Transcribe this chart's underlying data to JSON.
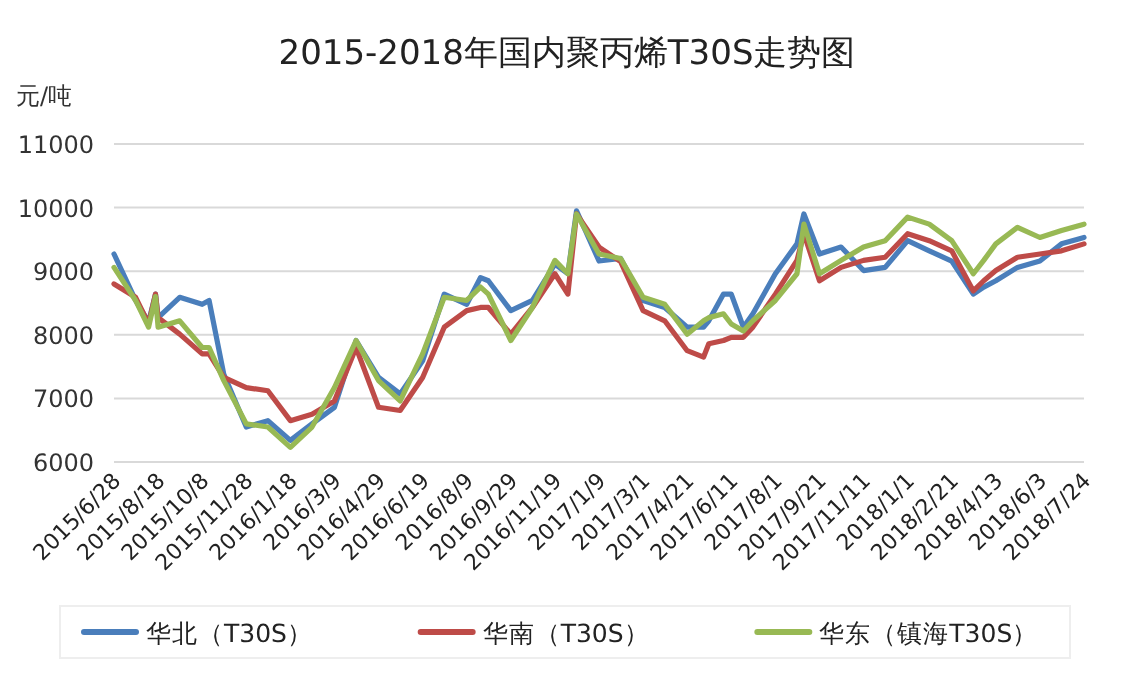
{
  "chart_data": {
    "type": "line",
    "title": "2015-2018年国内聚丙烯T30S走势图",
    "ylabel": "元/吨",
    "x": [
      "2015-06-28",
      "2015-07-23",
      "2015-08-07",
      "2015-08-15",
      "2015-08-18",
      "2015-09-12",
      "2015-10-08",
      "2015-10-16",
      "2015-11-02",
      "2015-11-28",
      "2015-12-23",
      "2016-01-18",
      "2016-02-12",
      "2016-03-09",
      "2016-04-03",
      "2016-04-29",
      "2016-05-24",
      "2016-06-19",
      "2016-07-14",
      "2016-08-09",
      "2016-08-25",
      "2016-09-03",
      "2016-09-29",
      "2016-10-24",
      "2016-11-19",
      "2016-12-04",
      "2016-12-14",
      "2017-01-09",
      "2017-02-03",
      "2017-03-01",
      "2017-03-26",
      "2017-04-21",
      "2017-05-10",
      "2017-05-16",
      "2017-06-02",
      "2017-06-11",
      "2017-06-25",
      "2017-07-06",
      "2017-08-01",
      "2017-08-26",
      "2017-09-03",
      "2017-09-21",
      "2017-10-16",
      "2017-11-11",
      "2017-12-06",
      "2018-01-01",
      "2018-01-26",
      "2018-02-21",
      "2018-03-18",
      "2018-03-30",
      "2018-04-13",
      "2018-05-08",
      "2018-06-03",
      "2018-06-28",
      "2018-07-24"
    ],
    "series": [
      {
        "name": "华北（T30S）",
        "color": "#4a7ebb",
        "values": [
          9270,
          8540,
          8200,
          8640,
          8270,
          8590,
          8480,
          8540,
          7380,
          6550,
          6650,
          6340,
          6600,
          6860,
          7910,
          7330,
          7070,
          7590,
          8640,
          8480,
          8900,
          8850,
          8380,
          8540,
          9110,
          8960,
          9950,
          9160,
          9200,
          8540,
          8430,
          8120,
          8120,
          8220,
          8640,
          8640,
          8120,
          8330,
          8960,
          9430,
          9900,
          9270,
          9380,
          9010,
          9060,
          9480,
          9320,
          9160,
          8640,
          8750,
          8850,
          9060,
          9160,
          9430,
          9530
        ]
      },
      {
        "name": "华南（T30S）",
        "color": "#be4b48",
        "values": [
          8800,
          8590,
          8170,
          8640,
          8270,
          8010,
          7700,
          7700,
          7330,
          7170,
          7120,
          6650,
          6750,
          6960,
          7800,
          6860,
          6810,
          7330,
          8120,
          8380,
          8430,
          8430,
          8010,
          8430,
          8960,
          8640,
          9900,
          9380,
          9150,
          8380,
          8220,
          7750,
          7650,
          7860,
          7910,
          7960,
          7960,
          8120,
          8640,
          9170,
          9590,
          8850,
          9060,
          9170,
          9220,
          9590,
          9480,
          9320,
          8690,
          8850,
          9010,
          9220,
          9270,
          9320,
          9430
        ]
      },
      {
        "name": "华东（镇海T30S）",
        "color": "#98b954",
        "values": [
          9060,
          8540,
          8120,
          8600,
          8120,
          8220,
          7800,
          7800,
          7280,
          6600,
          6550,
          6230,
          6550,
          7170,
          7910,
          7280,
          6960,
          7700,
          8590,
          8540,
          8750,
          8640,
          7910,
          8430,
          9170,
          8960,
          9900,
          9270,
          9200,
          8590,
          8480,
          8010,
          8220,
          8270,
          8330,
          8170,
          8060,
          8220,
          8540,
          8960,
          9740,
          8960,
          9170,
          9380,
          9480,
          9850,
          9740,
          9480,
          8960,
          9170,
          9430,
          9690,
          9530,
          9640,
          9740
        ]
      }
    ],
    "xlim": [
      "2015-06-28",
      "2018-07-24"
    ],
    "xticks": [
      {
        "value": "2015-06-28",
        "label": "2015/6/28"
      },
      {
        "value": "2015-08-18",
        "label": "2015/8/18"
      },
      {
        "value": "2015-10-08",
        "label": "2015/10/8"
      },
      {
        "value": "2015-11-28",
        "label": "2015/11/28"
      },
      {
        "value": "2016-01-18",
        "label": "2016/1/18"
      },
      {
        "value": "2016-03-09",
        "label": "2016/3/9"
      },
      {
        "value": "2016-04-29",
        "label": "2016/4/29"
      },
      {
        "value": "2016-06-19",
        "label": "2016/6/19"
      },
      {
        "value": "2016-08-09",
        "label": "2016/8/9"
      },
      {
        "value": "2016-09-29",
        "label": "2016/9/29"
      },
      {
        "value": "2016-11-19",
        "label": "2016/11/19"
      },
      {
        "value": "2017-01-09",
        "label": "2017/1/9"
      },
      {
        "value": "2017-03-01",
        "label": "2017/3/1"
      },
      {
        "value": "2017-04-21",
        "label": "2017/4/21"
      },
      {
        "value": "2017-06-11",
        "label": "2017/6/11"
      },
      {
        "value": "2017-08-01",
        "label": "2017/8/1"
      },
      {
        "value": "2017-09-21",
        "label": "2017/9/21"
      },
      {
        "value": "2017-11-11",
        "label": "2017/11/11"
      },
      {
        "value": "2018-01-01",
        "label": "2018/1/1"
      },
      {
        "value": "2018-02-21",
        "label": "2018/2/21"
      },
      {
        "value": "2018-04-13",
        "label": "2018/4/13"
      },
      {
        "value": "2018-06-03",
        "label": "2018/6/3"
      },
      {
        "value": "2018-07-24",
        "label": "2018/7/24"
      }
    ],
    "ylim": [
      6000,
      11000
    ],
    "yticks": [
      6000,
      7000,
      8000,
      9000,
      10000,
      11000
    ],
    "grid": "y",
    "legend": "bottom"
  }
}
